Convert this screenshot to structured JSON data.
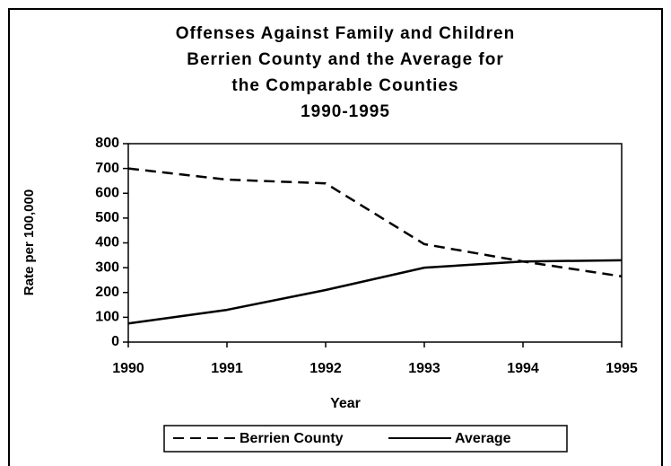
{
  "chart_data": {
    "type": "line",
    "title": [
      "Offenses Against Family and Children",
      "Berrien County and the Average for",
      "the Comparable Counties",
      "1990-1995"
    ],
    "x": [
      1990,
      1991,
      1992,
      1993,
      1994,
      1995
    ],
    "series": [
      {
        "name": "Berrien County",
        "color": "#000000",
        "line_style": "dashed",
        "values": [
          700,
          655,
          640,
          395,
          325,
          265
        ]
      },
      {
        "name": "Average",
        "color": "#000000",
        "line_style": "solid",
        "values": [
          75,
          130,
          210,
          300,
          325,
          330
        ]
      }
    ],
    "xlim": [
      1990,
      1995
    ],
    "xticks": [
      1990,
      1991,
      1992,
      1993,
      1994,
      1995
    ],
    "ylim": [
      0,
      800
    ],
    "yticks": [
      0,
      100,
      200,
      300,
      400,
      500,
      600,
      700,
      800
    ],
    "xlabel": "Year",
    "ylabel": "Rate per 100,000",
    "legend": "bottom"
  }
}
